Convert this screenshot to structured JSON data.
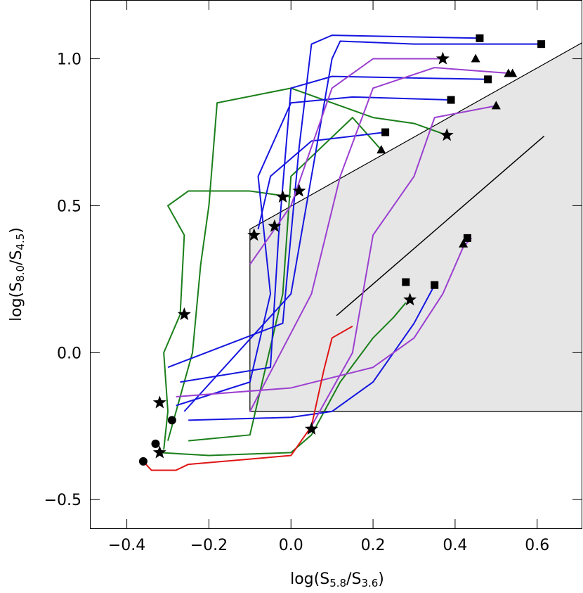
{
  "chart_data": {
    "type": "line",
    "xlabel": [
      "log(S",
      "5.8",
      "/S",
      "3.6",
      ")"
    ],
    "ylabel": [
      "log(S",
      "8.0",
      "/S",
      "4.5",
      ")"
    ],
    "xlim": [
      -0.49,
      0.71
    ],
    "ylim": [
      -0.6,
      1.2
    ],
    "xticks": [
      {
        "value": -0.4,
        "label": "−0.4"
      },
      {
        "value": -0.2,
        "label": "−0.2"
      },
      {
        "value": 0,
        "label": "0.0"
      },
      0.2,
      0.4,
      0.6
    ],
    "yticks": [
      {
        "value": -0.5,
        "label": "−0.5"
      },
      {
        "value": 0,
        "label": "0.0"
      },
      {
        "value": 0.5,
        "label": "0.5"
      },
      {
        "value": 1,
        "label": "1.0"
      }
    ],
    "region": {
      "color": "#e6e6e6",
      "x": [
        -0.1,
        -0.1,
        0.71,
        0.71
      ],
      "y": [
        -0.2,
        0.42,
        1.055,
        -0.2
      ]
    },
    "reference_line": {
      "color": "#000000",
      "x": [
        0.111,
        0.617
      ],
      "y": [
        0.126,
        0.737
      ]
    },
    "series": [
      {
        "color": "#1a7f1a",
        "x": [
          -0.32,
          -0.2,
          0.0,
          0.05,
          0.12,
          0.2,
          0.25,
          0.28
        ],
        "y": [
          -0.34,
          -0.35,
          -0.34,
          -0.28,
          -0.1,
          0.05,
          0.12,
          0.17
        ]
      },
      {
        "color": "#1a7f1a",
        "x": [
          -0.31,
          -0.3,
          -0.31,
          -0.27,
          -0.26,
          -0.3,
          -0.25,
          -0.1,
          0.0
        ],
        "y": [
          -0.33,
          -0.2,
          0.0,
          0.13,
          0.4,
          0.5,
          0.55,
          0.55,
          0.53
        ]
      },
      {
        "color": "#1a7f1a",
        "x": [
          -0.3,
          -0.24,
          -0.22,
          -0.2,
          -0.18,
          0.0,
          0.2,
          0.3,
          0.38
        ],
        "y": [
          -0.3,
          0.0,
          0.3,
          0.5,
          0.85,
          0.9,
          0.8,
          0.78,
          0.74
        ]
      },
      {
        "color": "#1a7f1a",
        "x": [
          -0.25,
          -0.1,
          -0.02,
          0.0,
          0.15,
          0.22
        ],
        "y": [
          -0.3,
          -0.28,
          0.2,
          0.6,
          0.8,
          0.69
        ]
      },
      {
        "color": "#1515e0",
        "x": [
          -0.25,
          0.0,
          0.1,
          0.2,
          0.3,
          0.35
        ],
        "y": [
          -0.23,
          -0.22,
          -0.2,
          -0.1,
          0.1,
          0.23
        ]
      },
      {
        "color": "#1515e0",
        "x": [
          -0.28,
          -0.1,
          -0.05,
          -0.08,
          0.0,
          0.15,
          0.39
        ],
        "y": [
          -0.18,
          -0.1,
          0.2,
          0.6,
          0.85,
          0.87,
          0.86
        ]
      },
      {
        "color": "#1515e0",
        "x": [
          -0.27,
          -0.05,
          -0.03,
          0.0,
          0.1,
          0.48
        ],
        "y": [
          -0.1,
          -0.05,
          0.4,
          0.9,
          0.94,
          0.93
        ]
      },
      {
        "color": "#1515e0",
        "x": [
          -0.3,
          -0.02,
          0.02,
          0.05,
          0.1,
          0.46
        ],
        "y": [
          -0.05,
          0.1,
          0.7,
          1.05,
          1.08,
          1.07
        ]
      },
      {
        "color": "#1515e0",
        "x": [
          -0.26,
          0.0,
          0.1,
          0.12,
          0.3,
          0.61
        ],
        "y": [
          -0.2,
          0.2,
          1.0,
          1.06,
          1.05,
          1.05
        ]
      },
      {
        "color": "#1515e0",
        "x": [
          -0.08,
          -0.05,
          0.05,
          0.23
        ],
        "y": [
          0.42,
          0.6,
          0.72,
          0.75
        ]
      },
      {
        "color": "#9b3fd0",
        "x": [
          -0.28,
          0.0,
          0.2,
          0.3,
          0.37,
          0.42,
          0.44
        ],
        "y": [
          -0.15,
          -0.12,
          -0.05,
          0.05,
          0.2,
          0.36,
          0.39
        ]
      },
      {
        "color": "#9b3fd0",
        "x": [
          -0.1,
          0.0,
          0.1,
          0.2,
          0.37
        ],
        "y": [
          0.3,
          0.5,
          0.9,
          1.0,
          1.0
        ]
      },
      {
        "color": "#9b3fd0",
        "x": [
          -0.1,
          0.05,
          0.12,
          0.2,
          0.35,
          0.54
        ],
        "y": [
          -0.2,
          0.2,
          0.6,
          0.9,
          0.97,
          0.95
        ]
      },
      {
        "color": "#9b3fd0",
        "x": [
          0.05,
          0.15,
          0.2,
          0.3,
          0.35,
          0.5
        ],
        "y": [
          -0.25,
          0.0,
          0.4,
          0.6,
          0.8,
          0.84
        ]
      },
      {
        "color": "#e01515",
        "x": [
          -0.36,
          -0.34,
          -0.28,
          -0.25,
          0.0,
          0.05,
          0.08,
          0.1,
          0.15
        ],
        "y": [
          -0.37,
          -0.4,
          -0.4,
          -0.38,
          -0.35,
          -0.25,
          -0.06,
          0.05,
          0.09
        ]
      },
      {
        "marker": "square",
        "color": "#000000",
        "x": [
          0.46,
          0.61,
          0.48,
          0.39,
          0.23,
          0.28,
          0.35,
          0.43
        ],
        "y": [
          1.07,
          1.05,
          0.93,
          0.86,
          0.75,
          0.24,
          0.23,
          0.39
        ]
      },
      {
        "marker": "triangle",
        "color": "#000000",
        "x": [
          0.45,
          0.53,
          0.54,
          0.5,
          0.22,
          0.42
        ],
        "y": [
          1.0,
          0.95,
          0.95,
          0.84,
          0.69,
          0.37
        ]
      },
      {
        "marker": "star",
        "color": "#000000",
        "x": [
          0.37,
          0.38,
          -0.02,
          0.02,
          -0.04,
          -0.09,
          -0.26,
          -0.32,
          -0.32,
          0.05,
          0.29
        ],
        "y": [
          1.0,
          0.74,
          0.53,
          0.55,
          0.43,
          0.4,
          0.13,
          -0.17,
          -0.34,
          -0.26,
          0.18
        ]
      },
      {
        "marker": "circle",
        "color": "#000000",
        "x": [
          -0.36,
          -0.33,
          -0.29
        ],
        "y": [
          -0.37,
          -0.31,
          -0.23
        ]
      }
    ]
  }
}
